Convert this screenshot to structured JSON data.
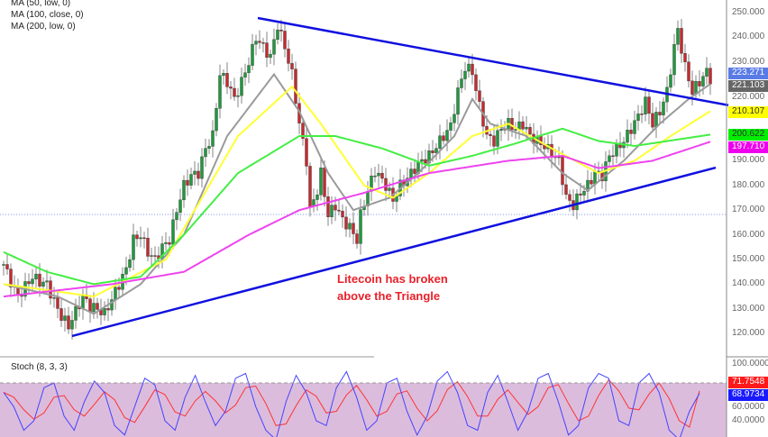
{
  "chart_data": {
    "type": "candlestick",
    "instrument_note": "Litecoin",
    "legend": [
      "MA (50, low, 0)",
      "MA (100, close, 0)",
      "MA (200, low, 0)"
    ],
    "annotation": [
      "Litecoin has broken",
      "above the Triangle"
    ],
    "y_axis": {
      "ticks": [
        "250.000",
        "240.000",
        "230.000",
        "220.000",
        "190.000",
        "180.000",
        "170.000",
        "160.000",
        "150.000",
        "140.000",
        "130.000",
        "120.000"
      ],
      "tick_values": [
        250,
        240,
        230,
        220,
        190,
        180,
        170,
        160,
        150,
        140,
        130,
        120
      ],
      "ylim": [
        115,
        253
      ]
    },
    "x_unit": "bar index",
    "price_path": [
      [
        0,
        148
      ],
      [
        2,
        141
      ],
      [
        4,
        135
      ],
      [
        6,
        139
      ],
      [
        8,
        143
      ],
      [
        10,
        141
      ],
      [
        12,
        140
      ],
      [
        14,
        133
      ],
      [
        16,
        127
      ],
      [
        18,
        123
      ],
      [
        20,
        129
      ],
      [
        22,
        135
      ],
      [
        24,
        131
      ],
      [
        26,
        130
      ],
      [
        28,
        128
      ],
      [
        30,
        134
      ],
      [
        32,
        140
      ],
      [
        34,
        146
      ],
      [
        36,
        158
      ],
      [
        38,
        160
      ],
      [
        40,
        153
      ],
      [
        42,
        150
      ],
      [
        44,
        155
      ],
      [
        46,
        158
      ],
      [
        48,
        170
      ],
      [
        50,
        180
      ],
      [
        52,
        184
      ],
      [
        54,
        185
      ],
      [
        56,
        195
      ],
      [
        58,
        200
      ],
      [
        60,
        225
      ],
      [
        62,
        222
      ],
      [
        64,
        215
      ],
      [
        66,
        222
      ],
      [
        68,
        230
      ],
      [
        70,
        240
      ],
      [
        72,
        236
      ],
      [
        74,
        232
      ],
      [
        76,
        245
      ],
      [
        78,
        236
      ],
      [
        80,
        225
      ],
      [
        82,
        205
      ],
      [
        84,
        190
      ],
      [
        85,
        170
      ],
      [
        87,
        178
      ],
      [
        88,
        185
      ],
      [
        90,
        168
      ],
      [
        92,
        172
      ],
      [
        94,
        166
      ],
      [
        96,
        163
      ],
      [
        98,
        158
      ],
      [
        99,
        168
      ],
      [
        101,
        178
      ],
      [
        103,
        186
      ],
      [
        105,
        182
      ],
      [
        106,
        180
      ],
      [
        108,
        174
      ],
      [
        110,
        180
      ],
      [
        112,
        183
      ],
      [
        114,
        187
      ],
      [
        116,
        190
      ],
      [
        118,
        192
      ],
      [
        120,
        196
      ],
      [
        122,
        200
      ],
      [
        124,
        204
      ],
      [
        126,
        218
      ],
      [
        128,
        228
      ],
      [
        130,
        226
      ],
      [
        132,
        212
      ],
      [
        134,
        200
      ],
      [
        136,
        198
      ],
      [
        138,
        203
      ],
      [
        140,
        205
      ],
      [
        142,
        203
      ],
      [
        144,
        205
      ],
      [
        146,
        200
      ],
      [
        148,
        198
      ],
      [
        150,
        196
      ],
      [
        152,
        193
      ],
      [
        154,
        190
      ],
      [
        156,
        175
      ],
      [
        158,
        172
      ],
      [
        160,
        177
      ],
      [
        162,
        180
      ],
      [
        164,
        185
      ],
      [
        166,
        184
      ],
      [
        168,
        192
      ],
      [
        170,
        195
      ],
      [
        172,
        198
      ],
      [
        174,
        203
      ],
      [
        176,
        208
      ],
      [
        178,
        214
      ],
      [
        180,
        205
      ],
      [
        182,
        210
      ],
      [
        184,
        218
      ],
      [
        186,
        236
      ],
      [
        187,
        243
      ],
      [
        189,
        228
      ],
      [
        191,
        218
      ],
      [
        193,
        222
      ],
      [
        195,
        226
      ],
      [
        196,
        223.271
      ]
    ],
    "series": [
      {
        "name": "MA (50, low, 0)",
        "color": "#9a9a9a",
        "last": 221.103,
        "points": [
          [
            0,
            140
          ],
          [
            15,
            135
          ],
          [
            25,
            128
          ],
          [
            38,
            140
          ],
          [
            50,
            160
          ],
          [
            62,
            200
          ],
          [
            75,
            225
          ],
          [
            82,
            210
          ],
          [
            90,
            185
          ],
          [
            97,
            170
          ],
          [
            107,
            175
          ],
          [
            115,
            185
          ],
          [
            125,
            200
          ],
          [
            130,
            215
          ],
          [
            135,
            205
          ],
          [
            145,
            200
          ],
          [
            155,
            185
          ],
          [
            162,
            178
          ],
          [
            172,
            190
          ],
          [
            182,
            205
          ],
          [
            190,
            215
          ],
          [
            196,
            221.1
          ]
        ]
      },
      {
        "name": "MA (100, close, 0)",
        "color": "#ffff33",
        "last": 210.107,
        "points": [
          [
            0,
            140
          ],
          [
            25,
            135
          ],
          [
            45,
            150
          ],
          [
            65,
            200
          ],
          [
            80,
            220
          ],
          [
            88,
            205
          ],
          [
            100,
            180
          ],
          [
            108,
            175
          ],
          [
            118,
            185
          ],
          [
            130,
            200
          ],
          [
            140,
            205
          ],
          [
            152,
            195
          ],
          [
            165,
            185
          ],
          [
            175,
            190
          ],
          [
            185,
            200
          ],
          [
            196,
            210.1
          ]
        ]
      },
      {
        "name": "",
        "color": "#44ee44",
        "last": 200.622,
        "points": [
          [
            0,
            153
          ],
          [
            12,
            145
          ],
          [
            25,
            140
          ],
          [
            38,
            143
          ],
          [
            50,
            160
          ],
          [
            65,
            185
          ],
          [
            82,
            200
          ],
          [
            92,
            200
          ],
          [
            105,
            195
          ],
          [
            118,
            188
          ],
          [
            130,
            192
          ],
          [
            142,
            197
          ],
          [
            155,
            203
          ],
          [
            165,
            198
          ],
          [
            175,
            196
          ],
          [
            196,
            200.6
          ]
        ]
      },
      {
        "name": "",
        "color": "#ee44ee",
        "last": 197.71,
        "points": [
          [
            0,
            135
          ],
          [
            30,
            140
          ],
          [
            50,
            145
          ],
          [
            68,
            160
          ],
          [
            82,
            170
          ],
          [
            100,
            177
          ],
          [
            118,
            185
          ],
          [
            140,
            190
          ],
          [
            155,
            192
          ],
          [
            165,
            187
          ],
          [
            180,
            190
          ],
          [
            196,
            197.7
          ]
        ]
      }
    ],
    "trendlines": [
      {
        "color": "#1010e0",
        "from": [
          70.5,
          247.8
        ],
        "to": [
          201,
          212.5
        ]
      },
      {
        "color": "#1010e0",
        "from": [
          19,
          119
        ],
        "to": [
          197.5,
          187.2
        ]
      }
    ],
    "last_price": {
      "value": "223.271",
      "color": "#5a7be6"
    },
    "badges": [
      {
        "text": "223.271",
        "bg": "#5a7be6",
        "value": 223.271
      },
      {
        "text": "221.103",
        "bg": "#666666",
        "value": 221.103
      },
      {
        "text": "210.107",
        "bg": "#ffff00",
        "fg": "#333",
        "value": 210.107
      },
      {
        "text": "200.622",
        "bg": "#00ee00",
        "fg": "#333",
        "value": 200.622
      },
      {
        "text": "197.710",
        "bg": "#ee00ee",
        "value": 197.71
      }
    ],
    "stochastic": {
      "label": "Stoch (8, 3, 3)",
      "ticks": [
        "100.0000",
        "60.0000",
        "40.0000"
      ],
      "tick_values": [
        100,
        60,
        40
      ],
      "overbought": 80,
      "k_color": "#4444ff",
      "d_color": "#ff3333",
      "k": [
        70,
        55,
        30,
        40,
        75,
        80,
        45,
        30,
        60,
        82,
        70,
        35,
        25,
        55,
        85,
        78,
        40,
        30,
        65,
        88,
        60,
        35,
        50,
        85,
        90,
        55,
        30,
        20,
        60,
        88,
        70,
        40,
        35,
        75,
        92,
        65,
        30,
        40,
        80,
        85,
        50,
        25,
        45,
        82,
        92,
        70,
        35,
        30,
        70,
        88,
        60,
        30,
        50,
        85,
        90,
        60,
        25,
        35,
        75,
        90,
        85,
        40,
        35,
        80,
        90,
        70,
        30,
        20,
        50,
        69
      ],
      "k_last": "68.9734",
      "d_last": "71.7548"
    }
  }
}
